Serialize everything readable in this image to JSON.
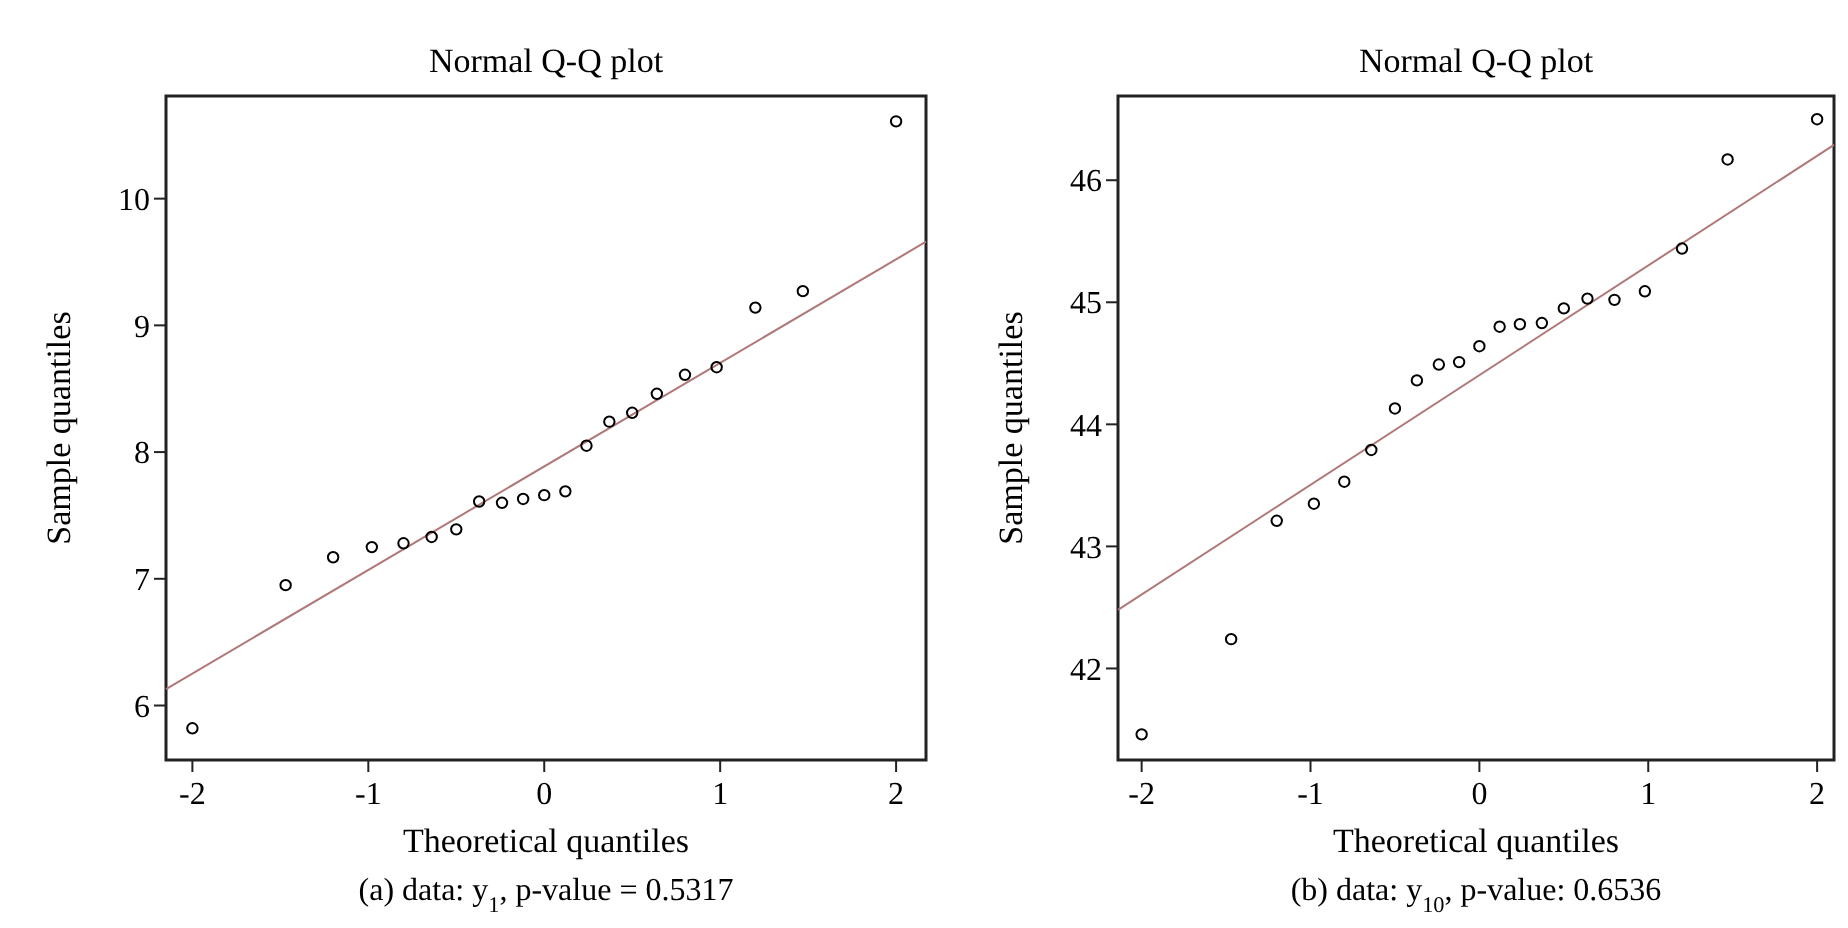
{
  "chart_data": [
    {
      "type": "scatter",
      "title": "Normal Q-Q plot",
      "xlabel": "Theoretical quantiles",
      "ylabel": "Sample quantiles",
      "annotations": [
        "(a) data: y$_{1}$, p-value = 0.5317"
      ],
      "xlim": [
        -2.15,
        2.17
      ],
      "ylim": [
        5.57,
        10.81
      ],
      "xticks": [
        -2,
        -1,
        0,
        1,
        2
      ],
      "yticks": [
        6,
        7,
        8,
        9,
        10
      ],
      "grid": false,
      "series": [
        {
          "marker": "circle",
          "color": "#000000",
          "x": [
            -2,
            -1.47,
            -1.2,
            -0.98,
            -0.8,
            -0.64,
            -0.5,
            -0.37,
            -0.24,
            -0.12,
            0,
            0.12,
            0.24,
            0.37,
            0.5,
            0.64,
            0.8,
            0.98,
            1.2,
            1.47,
            2
          ],
          "values": [
            5.82,
            6.95,
            7.17,
            7.25,
            7.28,
            7.33,
            7.39,
            7.61,
            7.6,
            7.63,
            7.66,
            7.69,
            8.05,
            8.24,
            8.31,
            8.46,
            8.61,
            8.67,
            9.14,
            9.27,
            10.61
          ]
        },
        {
          "type": "line",
          "color": "#b07878",
          "x": [
            -2.15,
            2.17
          ],
          "values": [
            6.13,
            9.66
          ]
        }
      ]
    },
    {
      "type": "scatter",
      "title": "Normal Q-Q plot",
      "xlabel": "Theoretical quantiles",
      "ylabel": "Sample quantiles",
      "annotations": [
        "(b) data: y$_{10}$, p-value: 0.6536"
      ],
      "xlim": [
        -2.14,
        2.1
      ],
      "ylim": [
        41.25,
        46.69
      ],
      "xticks": [
        -2,
        -1,
        0,
        1,
        2
      ],
      "yticks": [
        42,
        43,
        44,
        45,
        46
      ],
      "grid": false,
      "series": [
        {
          "marker": "circle",
          "color": "#000000",
          "x": [
            -2,
            -1.47,
            -1.2,
            -0.98,
            -0.8,
            -0.64,
            -0.5,
            -0.37,
            -0.24,
            -0.12,
            0,
            0.12,
            0.24,
            0.37,
            0.5,
            0.64,
            0.8,
            0.98,
            1.2,
            1.47,
            2
          ],
          "values": [
            41.46,
            42.24,
            43.21,
            43.35,
            43.53,
            43.79,
            44.13,
            44.36,
            44.49,
            44.51,
            44.64,
            44.8,
            44.82,
            44.83,
            44.95,
            45.03,
            45.02,
            45.09,
            45.44,
            46.17,
            46.5
          ]
        },
        {
          "type": "line",
          "color": "#b07878",
          "x": [
            -2.14,
            2.1
          ],
          "values": [
            42.48,
            46.29
          ]
        }
      ]
    }
  ]
}
